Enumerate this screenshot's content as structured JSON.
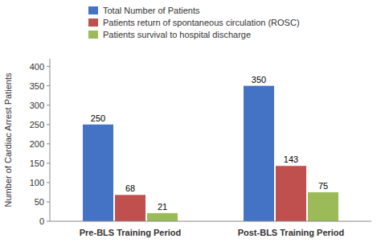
{
  "chart_data": {
    "type": "bar",
    "categories": [
      "Pre-BLS Training Period",
      "Post-BLS Training Period"
    ],
    "series": [
      {
        "name": "Total Number of Patients",
        "color": "#4472C4",
        "values": [
          250,
          350
        ]
      },
      {
        "name": "Patients return of spontaneous circulation (ROSC)",
        "color": "#C0504D",
        "values": [
          68,
          143
        ]
      },
      {
        "name": "Patients survival to hospital discharge",
        "color": "#9BBB59",
        "values": [
          21,
          75
        ]
      }
    ],
    "ylabel": "Number of Cardiac Arrest Patients",
    "ylim": [
      0,
      420
    ],
    "yticks": [
      0,
      50,
      100,
      150,
      200,
      250,
      300,
      350,
      400
    ],
    "grid": false,
    "legend": "top",
    "data_labels": true
  }
}
